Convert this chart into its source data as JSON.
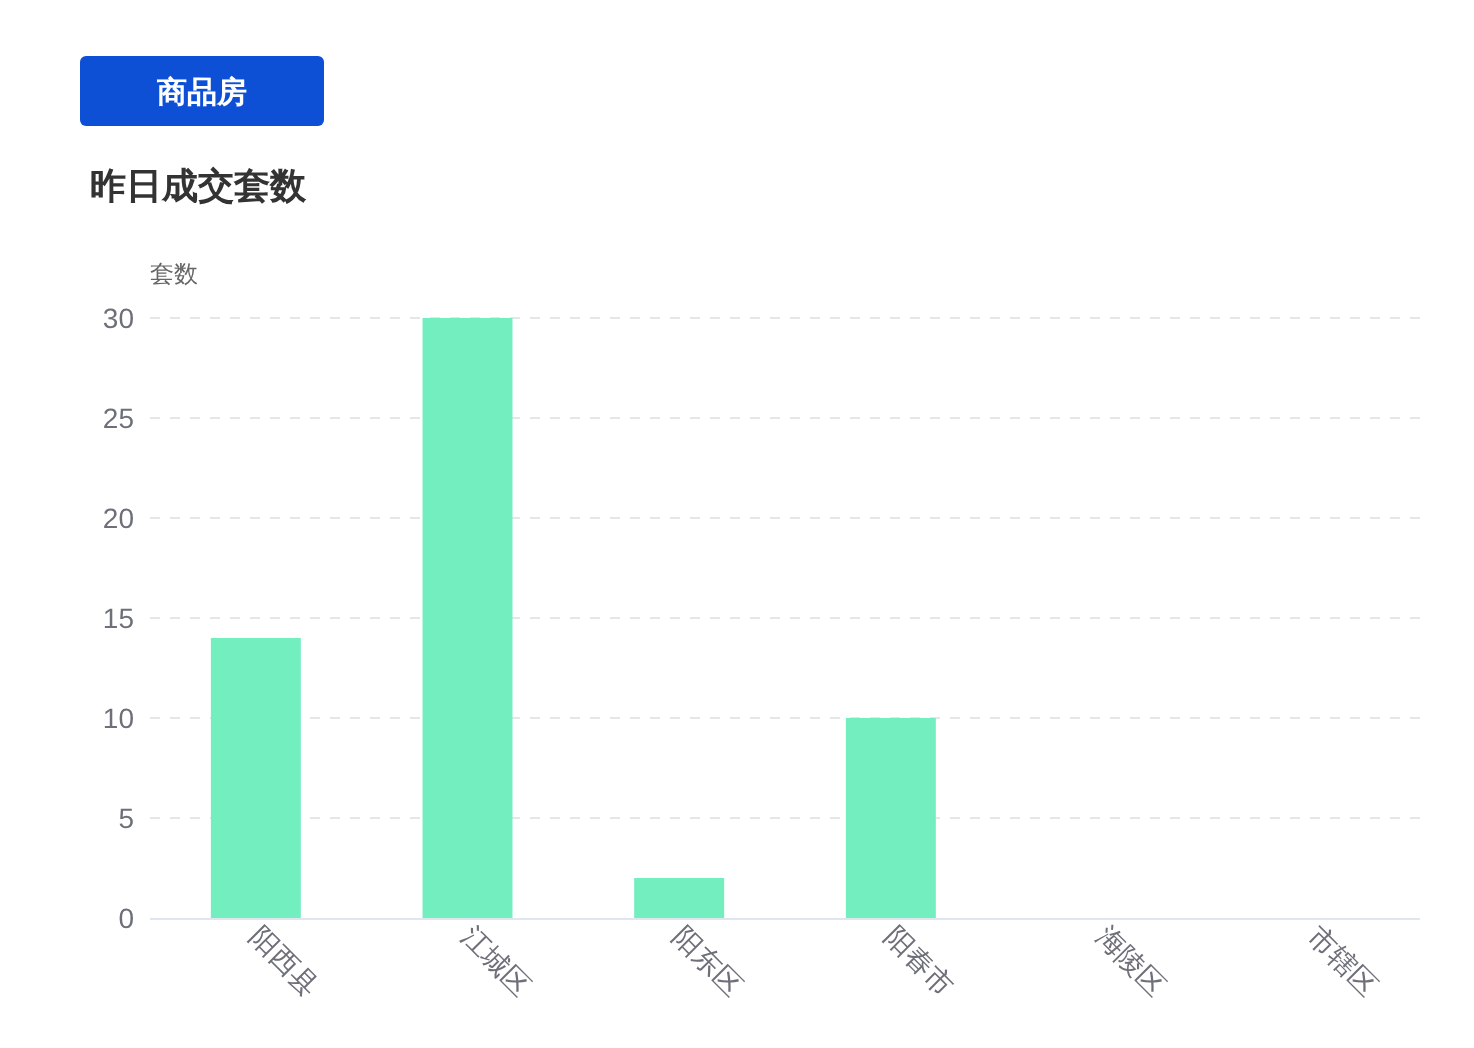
{
  "chart_data": {
    "type": "bar",
    "title": "昨日成交套数",
    "ylabel": "套数",
    "annotations": [
      "商品房"
    ],
    "categories": [
      "阳西县",
      "江城区",
      "阳东区",
      "阳春市",
      "海陵区",
      "市辖区"
    ],
    "values": [
      14,
      30,
      2,
      10,
      0,
      0
    ],
    "color": "#73eebe",
    "ylim": [
      0,
      30
    ],
    "yticks": [
      0,
      5,
      10,
      15,
      20,
      25,
      30
    ],
    "grid": "y"
  }
}
